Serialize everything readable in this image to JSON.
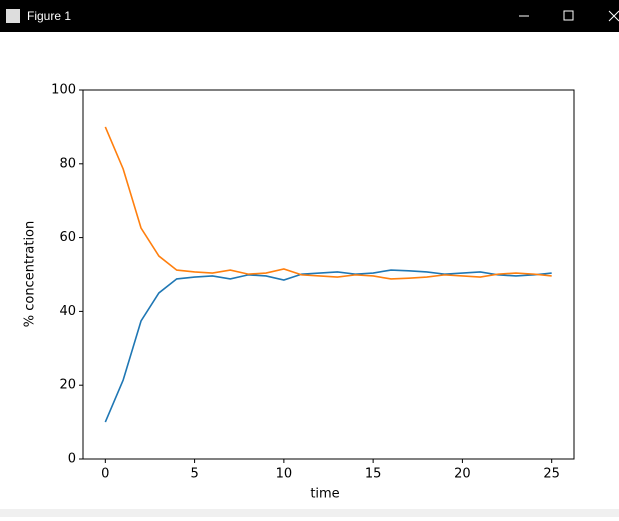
{
  "window": {
    "title": "Figure 1"
  },
  "chart_data": {
    "type": "line",
    "xlabel": "time",
    "ylabel": "% concentration",
    "x": [
      0,
      1,
      2,
      3,
      4,
      5,
      6,
      7,
      8,
      9,
      10,
      11,
      12,
      13,
      14,
      15,
      16,
      17,
      18,
      19,
      20,
      21,
      22,
      23,
      24,
      25
    ],
    "series": [
      {
        "color": "#1f77b4",
        "values": [
          10,
          21.4,
          37.4,
          45,
          48.8,
          49.3,
          49.6,
          48.8,
          49.9,
          49.6,
          48.5,
          50.1,
          50.4,
          50.7,
          50.1,
          50.4,
          51.2,
          51,
          50.7,
          50.1,
          50.4,
          50.7,
          49.9,
          49.6,
          49.9,
          50.4
        ]
      },
      {
        "color": "#ff7f0e",
        "values": [
          90,
          78.6,
          62.6,
          55,
          51.2,
          50.7,
          50.4,
          51.2,
          50.1,
          50.4,
          51.5,
          49.9,
          49.6,
          49.3,
          49.9,
          49.6,
          48.8,
          49,
          49.3,
          49.9,
          49.6,
          49.3,
          50.1,
          50.4,
          50.1,
          49.6
        ]
      }
    ],
    "xlim": [
      -1.25,
      26.25
    ],
    "xticks": [
      0,
      5,
      10,
      15,
      20,
      25
    ],
    "ylim": [
      0,
      100
    ],
    "yticks": [
      0,
      20,
      40,
      60,
      80,
      100
    ]
  }
}
